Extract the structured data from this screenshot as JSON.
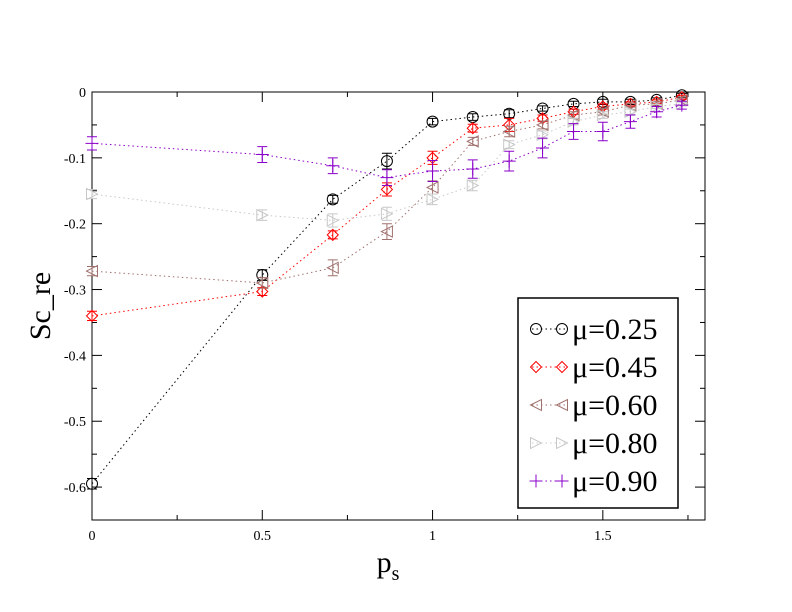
{
  "chart_data": {
    "type": "scatter",
    "title": "",
    "xlabel": "p",
    "xlabel_subscript": "s",
    "ylabel": "Sc_re",
    "xlim": [
      0,
      1.8
    ],
    "ylim": [
      -0.65,
      0
    ],
    "xticks": [
      0,
      0.5,
      1,
      1.5
    ],
    "xtick_labels": [
      "0",
      "0.5",
      "1",
      "1.5"
    ],
    "yticks": [
      0,
      -0.1,
      -0.2,
      -0.3,
      -0.4,
      -0.5,
      -0.6
    ],
    "ytick_labels": [
      "0",
      "-0.1",
      "-0.2",
      "-0.3",
      "-0.4",
      "-0.5",
      "-0.6"
    ],
    "grid": false,
    "legend_position": "bottom-right",
    "series": [
      {
        "name": "μ=0.25",
        "color": "#000000",
        "marker": "circle",
        "x": [
          0,
          0.5,
          0.707,
          0.866,
          1.0,
          1.118,
          1.225,
          1.323,
          1.414,
          1.5,
          1.581,
          1.658,
          1.732
        ],
        "y": [
          -0.595,
          -0.278,
          -0.163,
          -0.105,
          -0.045,
          -0.038,
          -0.033,
          -0.025,
          -0.018,
          -0.015,
          -0.015,
          -0.012,
          -0.005
        ],
        "err": [
          0.008,
          0.008,
          0.006,
          0.012,
          0.005,
          0.005,
          0.006,
          0.004,
          0.004,
          0.004,
          0.004,
          0.003,
          0.003
        ]
      },
      {
        "name": "μ=0.45",
        "color": "#ff0000",
        "marker": "diamond",
        "x": [
          0,
          0.5,
          0.707,
          0.866,
          1.0,
          1.118,
          1.225,
          1.323,
          1.414,
          1.5,
          1.581,
          1.658,
          1.732
        ],
        "y": [
          -0.34,
          -0.303,
          -0.217,
          -0.148,
          -0.1,
          -0.055,
          -0.05,
          -0.04,
          -0.03,
          -0.022,
          -0.018,
          -0.015,
          -0.008
        ],
        "err": [
          0.007,
          0.006,
          0.006,
          0.01,
          0.01,
          0.006,
          0.01,
          0.005,
          0.004,
          0.004,
          0.003,
          0.003,
          0.003
        ]
      },
      {
        "name": "μ=0.60",
        "color": "#a0726e",
        "marker": "triangle-left",
        "x": [
          0,
          0.5,
          0.707,
          0.866,
          1.0,
          1.118,
          1.225,
          1.323,
          1.414,
          1.5,
          1.581,
          1.658,
          1.732
        ],
        "y": [
          -0.272,
          -0.29,
          -0.267,
          -0.212,
          -0.145,
          -0.075,
          -0.06,
          -0.05,
          -0.035,
          -0.03,
          -0.02,
          -0.018,
          -0.012
        ],
        "err": [
          0.007,
          0.008,
          0.012,
          0.012,
          0.01,
          0.006,
          0.008,
          0.006,
          0.005,
          0.005,
          0.003,
          0.003,
          0.003
        ]
      },
      {
        "name": "μ=0.80",
        "color": "#c8c8c8",
        "marker": "triangle-right",
        "x": [
          0,
          0.5,
          0.707,
          0.866,
          1.0,
          1.118,
          1.225,
          1.323,
          1.414,
          1.5,
          1.581,
          1.658,
          1.732
        ],
        "y": [
          -0.155,
          -0.187,
          -0.195,
          -0.185,
          -0.163,
          -0.142,
          -0.08,
          -0.065,
          -0.045,
          -0.035,
          -0.03,
          -0.022,
          -0.018
        ],
        "err": [
          0.007,
          0.008,
          0.01,
          0.01,
          0.008,
          0.008,
          0.006,
          0.006,
          0.005,
          0.005,
          0.004,
          0.003,
          0.003
        ]
      },
      {
        "name": "μ=0.90",
        "color": "#8a00c8",
        "marker": "plus",
        "x": [
          0,
          0.5,
          0.707,
          0.866,
          1.0,
          1.118,
          1.225,
          1.323,
          1.414,
          1.5,
          1.581,
          1.658,
          1.732
        ],
        "y": [
          -0.078,
          -0.095,
          -0.112,
          -0.13,
          -0.12,
          -0.117,
          -0.105,
          -0.085,
          -0.06,
          -0.06,
          -0.045,
          -0.03,
          -0.02
        ],
        "err": [
          0.01,
          0.012,
          0.012,
          0.012,
          0.016,
          0.014,
          0.015,
          0.015,
          0.012,
          0.014,
          0.01,
          0.008,
          0.006
        ]
      }
    ]
  }
}
